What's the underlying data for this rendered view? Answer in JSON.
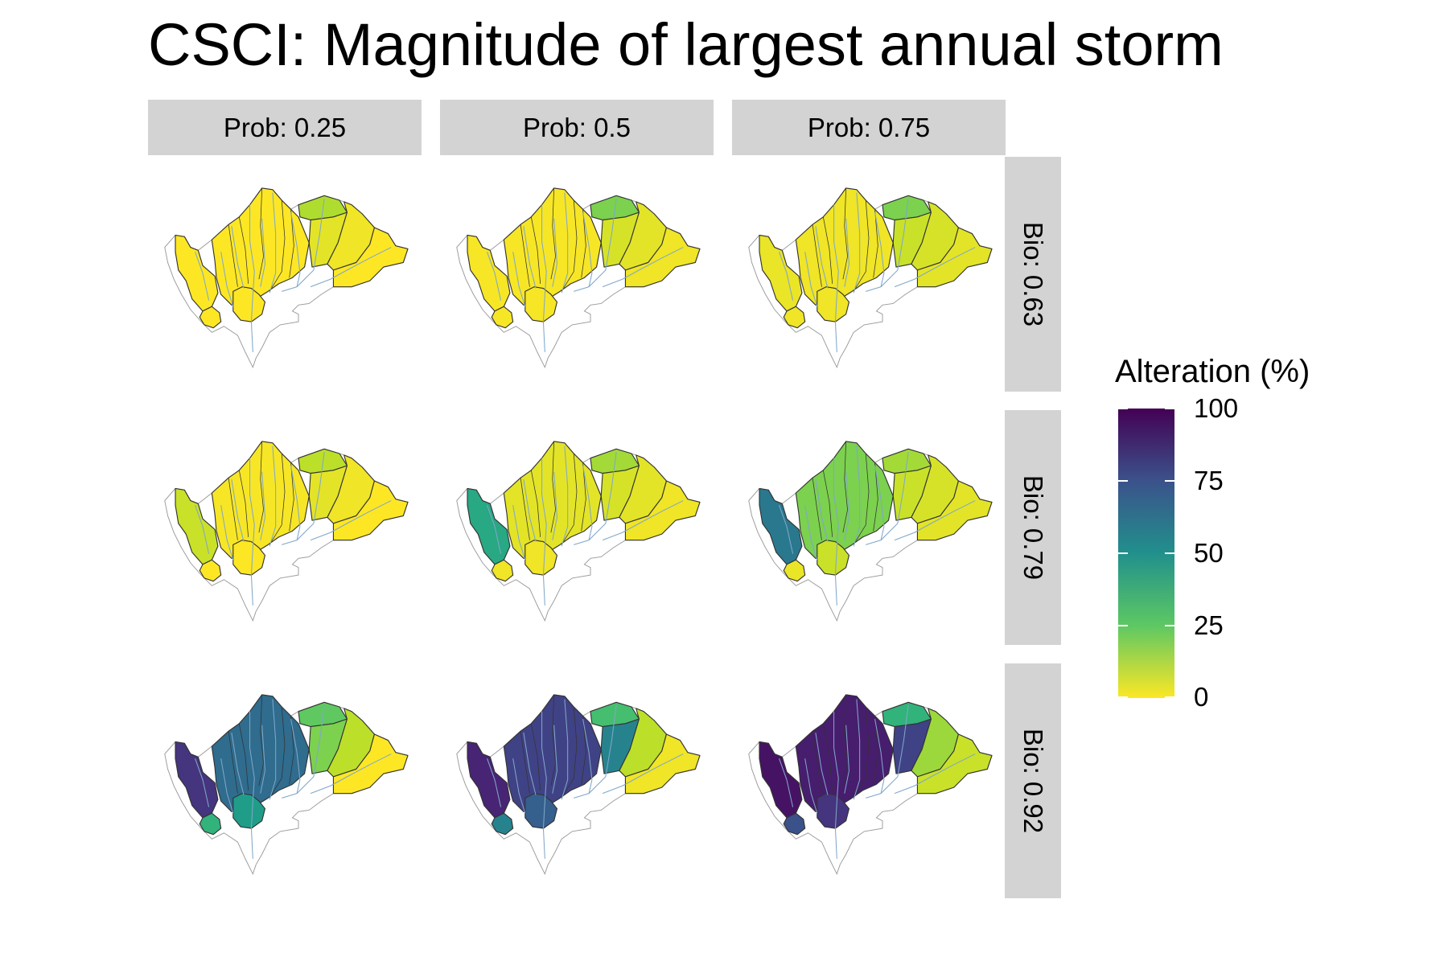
{
  "title": "CSCI: Magnitude of largest annual storm",
  "columns": [
    {
      "label": "Prob: 0.25"
    },
    {
      "label": "Prob: 0.5"
    },
    {
      "label": "Prob: 0.75"
    }
  ],
  "rows": [
    {
      "label": "Bio: 0.63"
    },
    {
      "label": "Bio: 0.79"
    },
    {
      "label": "Bio: 0.92"
    }
  ],
  "legend": {
    "title": "Alteration (%)",
    "ticks": [
      "100",
      "75",
      "50",
      "25",
      "0"
    ],
    "scale": "viridis",
    "range": [
      0,
      100
    ]
  },
  "colors": {
    "strip_background": "#d3d3d3",
    "streams": "#7fa7c9",
    "outline": "#333333"
  },
  "panels": [
    {
      "row": 0,
      "col": 0,
      "alteration": {
        "ne": 12,
        "e1": 4,
        "e2": 2,
        "east": 0,
        "west": 0,
        "central": 0,
        "south": 0,
        "south_w": 0
      }
    },
    {
      "row": 0,
      "col": 1,
      "alteration": {
        "ne": 20,
        "e1": 6,
        "e2": 4,
        "east": 2,
        "west": 1,
        "central": 1,
        "south": 1,
        "south_w": 1
      }
    },
    {
      "row": 0,
      "col": 2,
      "alteration": {
        "ne": 20,
        "e1": 8,
        "e2": 6,
        "east": 4,
        "west": 3,
        "central": 2,
        "south": 2,
        "south_w": 2
      }
    },
    {
      "row": 1,
      "col": 0,
      "alteration": {
        "ne": 10,
        "e1": 4,
        "e2": 2,
        "east": 0,
        "west": 8,
        "central": 1,
        "south": 0,
        "south_w": 0
      }
    },
    {
      "row": 1,
      "col": 1,
      "alteration": {
        "ne": 14,
        "e1": 6,
        "e2": 4,
        "east": 2,
        "west": 40,
        "central": 4,
        "south": 2,
        "south_w": 2
      }
    },
    {
      "row": 1,
      "col": 2,
      "alteration": {
        "ne": 14,
        "e1": 8,
        "e2": 6,
        "east": 4,
        "west": 60,
        "central": 20,
        "south": 8,
        "south_w": 3
      }
    },
    {
      "row": 2,
      "col": 0,
      "alteration": {
        "ne": 25,
        "e1": 20,
        "e2": 10,
        "east": 0,
        "west": 85,
        "central": 65,
        "south": 45,
        "south_w": 35
      }
    },
    {
      "row": 2,
      "col": 1,
      "alteration": {
        "ne": 30,
        "e1": 55,
        "e2": 10,
        "east": 2,
        "west": 90,
        "central": 80,
        "south": 70,
        "south_w": 55
      }
    },
    {
      "row": 2,
      "col": 2,
      "alteration": {
        "ne": 35,
        "e1": 80,
        "e2": 15,
        "east": 8,
        "west": 95,
        "central": 92,
        "south": 85,
        "south_w": 75
      }
    }
  ]
}
